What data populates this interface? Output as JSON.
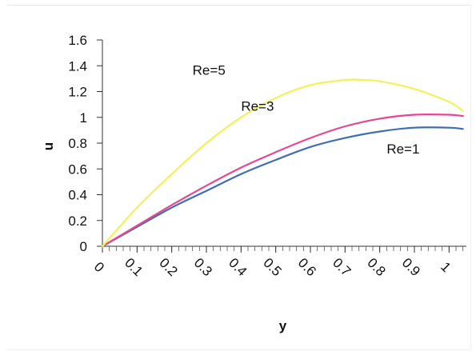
{
  "chart_data": {
    "type": "line",
    "title": "",
    "xlabel": "y",
    "ylabel": "u",
    "xlim": [
      0,
      1.05
    ],
    "ylim": [
      0,
      1.6
    ],
    "x_ticks": [
      0,
      0.1,
      0.2,
      0.3,
      0.4,
      0.5,
      0.6,
      0.7,
      0.8,
      0.9,
      1
    ],
    "x_tick_labels": [
      "0",
      "0.1",
      "0.2",
      "0.3",
      "0.4",
      "0.5",
      "0.6",
      "0.7",
      "0.8",
      "0.9",
      "1"
    ],
    "y_ticks": [
      0,
      0.2,
      0.4,
      0.6,
      0.8,
      1,
      1.2,
      1.4,
      1.6
    ],
    "y_tick_labels": [
      "0",
      "0.2",
      "0.4",
      "0.6",
      "0.8",
      "1",
      "1.2",
      "1.4",
      "1.6"
    ],
    "grid": false,
    "legend": "none",
    "series": [
      {
        "name": "Re=1",
        "color": "#3f6fb3",
        "x": [
          0,
          0.1,
          0.2,
          0.3,
          0.4,
          0.5,
          0.6,
          0.7,
          0.8,
          0.9,
          1.0,
          1.04
        ],
        "y": [
          0,
          0.15,
          0.3,
          0.43,
          0.56,
          0.67,
          0.77,
          0.84,
          0.89,
          0.92,
          0.92,
          0.91
        ]
      },
      {
        "name": "Re=3",
        "color": "#e8488f",
        "x": [
          0,
          0.1,
          0.2,
          0.3,
          0.4,
          0.5,
          0.6,
          0.7,
          0.8,
          0.9,
          1.0,
          1.04
        ],
        "y": [
          0,
          0.16,
          0.32,
          0.47,
          0.61,
          0.73,
          0.84,
          0.93,
          0.99,
          1.02,
          1.02,
          1.01
        ]
      },
      {
        "name": "Re=5",
        "color": "#f2f25a",
        "x": [
          0,
          0.1,
          0.2,
          0.3,
          0.4,
          0.5,
          0.6,
          0.7,
          0.75,
          0.8,
          0.9,
          1.0,
          1.04
        ],
        "y": [
          0,
          0.3,
          0.56,
          0.8,
          1.0,
          1.15,
          1.25,
          1.29,
          1.29,
          1.28,
          1.22,
          1.12,
          1.05
        ]
      }
    ],
    "annotations": [
      {
        "text": "Re=5",
        "series": "Re=5",
        "x": 0.26,
        "y": 1.33
      },
      {
        "text": "Re=3",
        "series": "Re=3",
        "x": 0.4,
        "y": 1.05
      },
      {
        "text": "Re=1",
        "series": "Re=1",
        "x": 0.82,
        "y": 0.72
      }
    ]
  }
}
